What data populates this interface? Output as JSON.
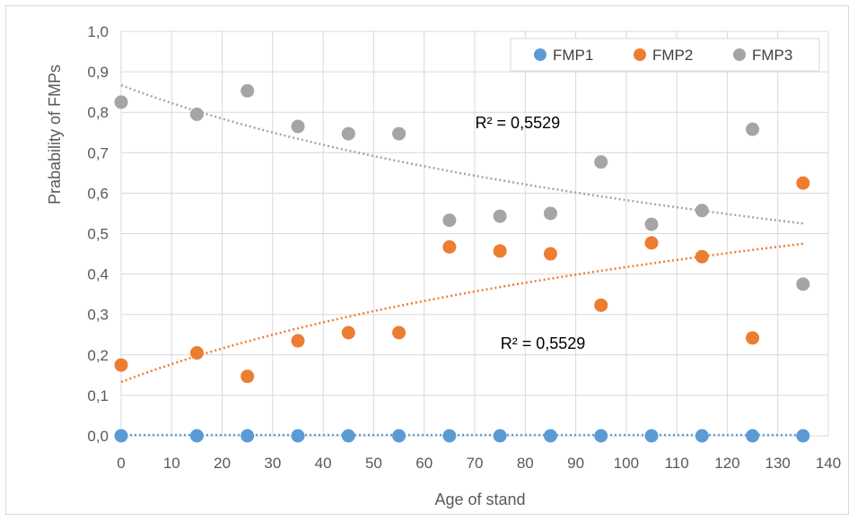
{
  "chart_data": {
    "type": "scatter",
    "title": "",
    "xlabel": "Age of stand",
    "ylabel": "Prabability of FMPs",
    "xlim": [
      0,
      140
    ],
    "ylim": [
      0,
      1
    ],
    "x_ticks": [
      0,
      10,
      20,
      30,
      40,
      50,
      60,
      70,
      80,
      90,
      100,
      110,
      120,
      130,
      140
    ],
    "x_tick_labels": [
      "0",
      "10",
      "20",
      "30",
      "40",
      "50",
      "60",
      "70",
      "80",
      "90",
      "100",
      "110",
      "120",
      "130",
      "140"
    ],
    "y_ticks": [
      0,
      0.1,
      0.2,
      0.3,
      0.4,
      0.5,
      0.6,
      0.7,
      0.8,
      0.9,
      1.0
    ],
    "y_tick_labels": [
      "0,0",
      "0,1",
      "0,2",
      "0,3",
      "0,4",
      "0,5",
      "0,6",
      "0,7",
      "0,8",
      "0,9",
      "1,0"
    ],
    "grid": "vertical-and-horizontal",
    "legend_position": "top-right",
    "x": [
      0,
      15,
      25,
      35,
      45,
      55,
      65,
      75,
      85,
      95,
      105,
      115,
      125,
      135
    ],
    "series": [
      {
        "name": "FMP1",
        "color": "#5b9bd5",
        "values": [
          0,
          0,
          0,
          0,
          0,
          0,
          0,
          0,
          0,
          0,
          0,
          0,
          0,
          0
        ],
        "trendline": {
          "color": "#5b9bd5",
          "start": 0.002,
          "end": 0.002
        }
      },
      {
        "name": "FMP2",
        "color": "#ed7d31",
        "values": [
          0.175,
          0.205,
          0.147,
          0.235,
          0.255,
          0.255,
          0.467,
          0.457,
          0.45,
          0.323,
          0.477,
          0.443,
          0.242,
          0.625
        ],
        "trendline": {
          "color": "#ed7d31",
          "start": 0.133,
          "end": 0.475
        }
      },
      {
        "name": "FMP3",
        "color": "#a5a5a5",
        "values": [
          0.825,
          0.795,
          0.853,
          0.765,
          0.747,
          0.747,
          0.533,
          0.543,
          0.55,
          0.677,
          0.523,
          0.557,
          0.758,
          0.375
        ],
        "trendline": {
          "color": "#a5a5a5",
          "start": 0.867,
          "end": 0.525
        }
      }
    ],
    "annotations": [
      {
        "text": "R² = 0,5529",
        "x": 78.5,
        "y": 0.76
      },
      {
        "text": "R² = 0,5529",
        "x": 83.5,
        "y": 0.215
      }
    ]
  }
}
